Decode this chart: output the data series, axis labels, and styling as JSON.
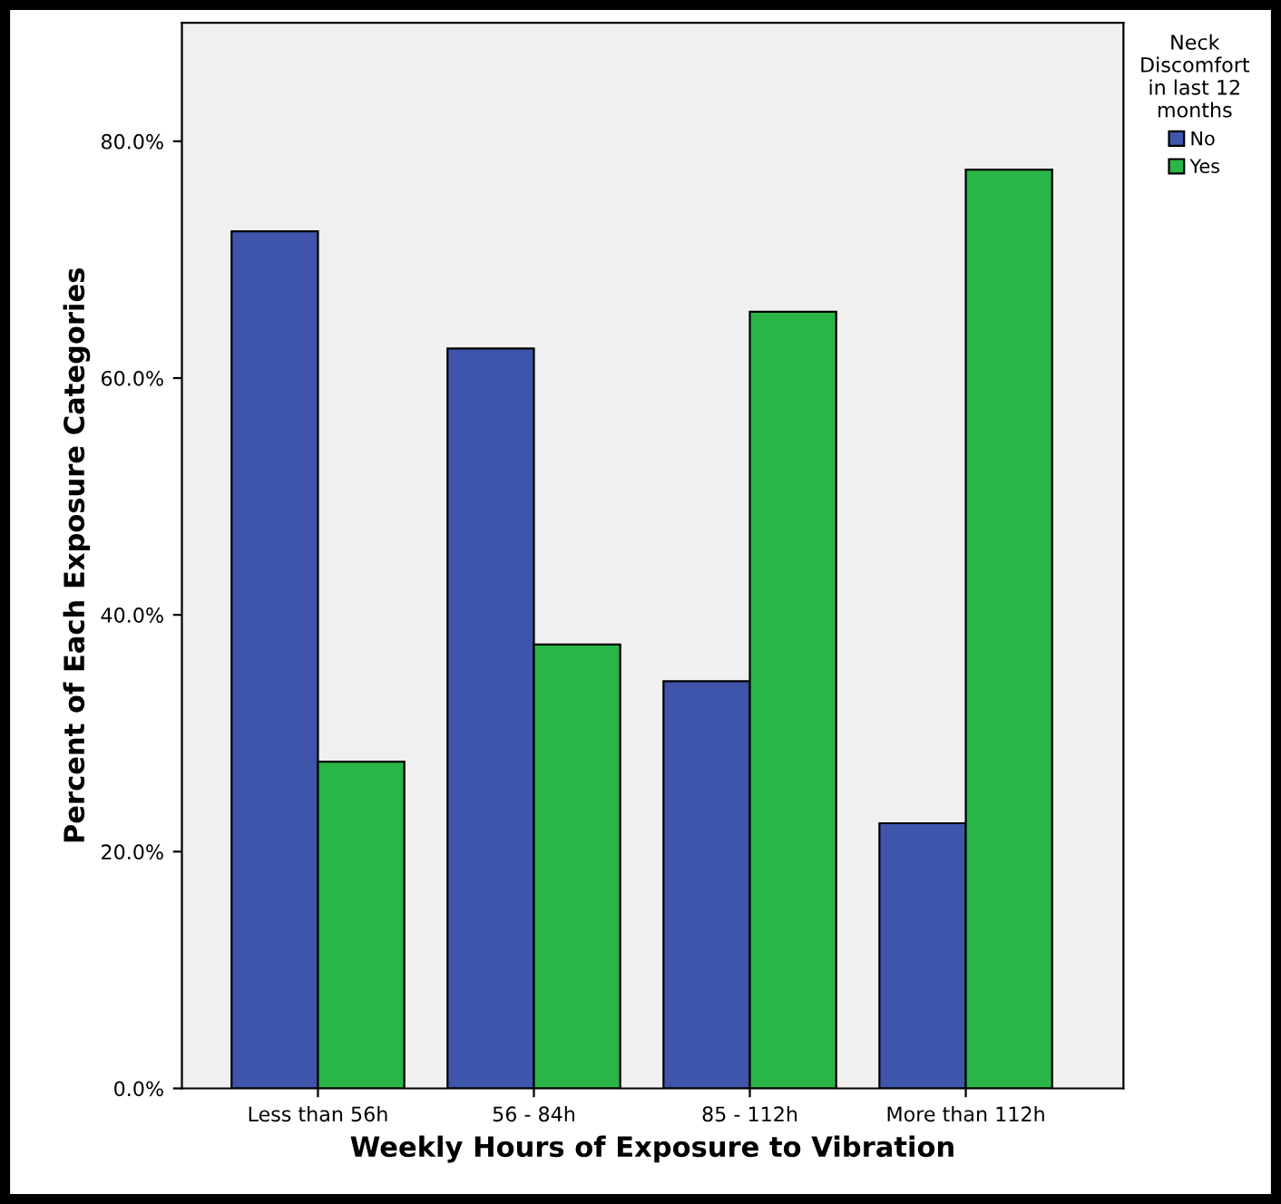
{
  "chart_data": {
    "type": "bar",
    "xlabel": "Weekly Hours of Exposure to Vibration",
    "ylabel": "Percent of Each Exposure Categories",
    "legend_title": "Neck\nDiscomfort\nin last 12\nmonths",
    "legend": "top right",
    "categories": [
      "Less than 56h",
      "56 - 84h",
      "85 - 112h",
      "More than 112h"
    ],
    "series": [
      {
        "name": "No",
        "color": "#3e55ab",
        "values": [
          72.4,
          62.5,
          34.4,
          22.4
        ]
      },
      {
        "name": "Yes",
        "color": "#2ab548",
        "values": [
          27.6,
          37.5,
          65.6,
          77.6
        ]
      }
    ],
    "ylim": [
      0,
      90
    ],
    "yticks": [
      {
        "value": 0,
        "label": "0.0%"
      },
      {
        "value": 20,
        "label": "20.0%"
      },
      {
        "value": 40,
        "label": "40.0%"
      },
      {
        "value": 60,
        "label": "60.0%"
      },
      {
        "value": 80,
        "label": "80.0%"
      }
    ],
    "grid": false
  }
}
